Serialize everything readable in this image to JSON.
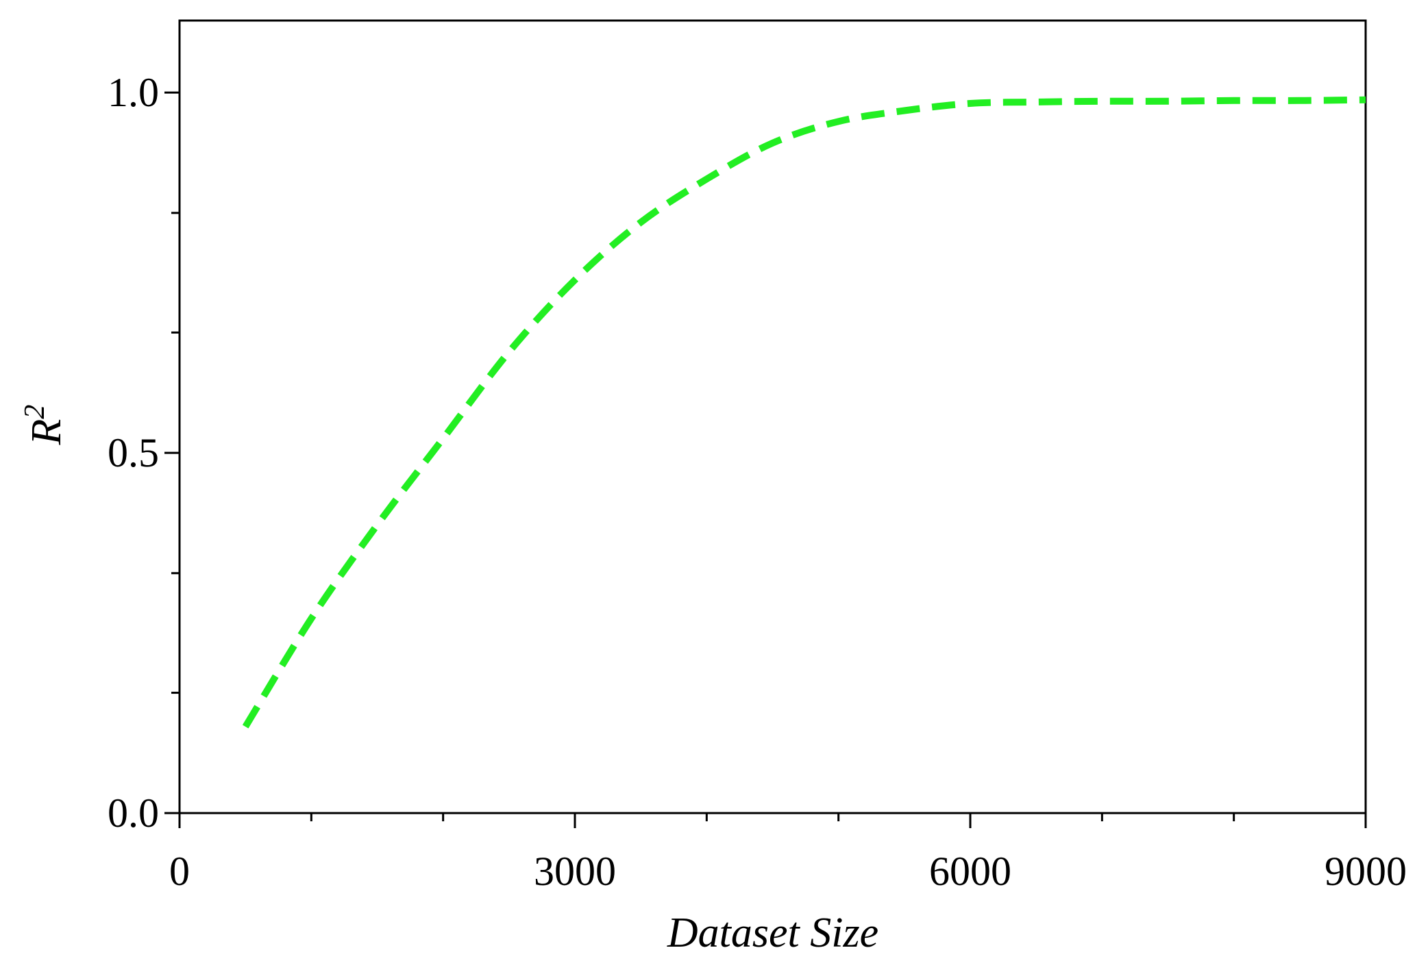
{
  "chart_data": {
    "type": "line",
    "title": "",
    "xlabel": "Dataset Size",
    "ylabel_base": "R",
    "ylabel_sup": "2",
    "xlim": [
      0,
      9000
    ],
    "ylim": [
      0,
      1.1
    ],
    "x_ticks": [
      0,
      3000,
      6000,
      9000
    ],
    "x_tick_labels": [
      "0",
      "3000",
      "6000",
      "9000"
    ],
    "x_minor_ticks": [
      1000,
      2000,
      4000,
      5000,
      7000,
      8000
    ],
    "y_ticks": [
      0,
      0.5,
      1.0
    ],
    "y_tick_labels": [
      "0.0",
      "0.5",
      "1.0"
    ],
    "y_minor_ticks": [
      0.167,
      0.333,
      0.667,
      0.833
    ],
    "grid": false,
    "legend": "none",
    "series": [
      {
        "color": "#22ee22",
        "line_style": "dashed",
        "x": [
          500,
          1000,
          1500,
          2000,
          2500,
          3000,
          3500,
          4000,
          4500,
          5000,
          5500,
          6000,
          6500,
          7000,
          7500,
          8000,
          8500,
          9000
        ],
        "y": [
          0.12,
          0.27,
          0.4,
          0.52,
          0.64,
          0.74,
          0.82,
          0.88,
          0.93,
          0.96,
          0.975,
          0.985,
          0.987,
          0.988,
          0.988,
          0.989,
          0.989,
          0.99
        ]
      }
    ]
  }
}
